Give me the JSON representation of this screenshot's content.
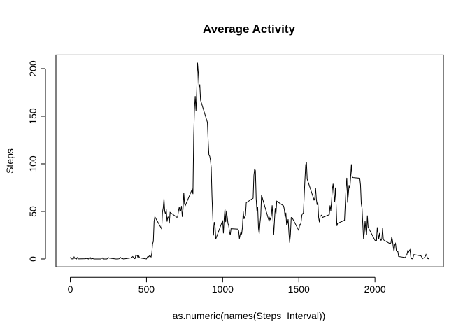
{
  "chart_data": {
    "type": "line",
    "title": "Average Activity",
    "x_label": "as.numeric(names(Steps_Interval))",
    "y_label": "Steps",
    "x": [
      0,
      5,
      10,
      15,
      20,
      25,
      30,
      35,
      40,
      45,
      50,
      55,
      100,
      105,
      110,
      115,
      120,
      125,
      130,
      135,
      140,
      145,
      150,
      155,
      200,
      210,
      215,
      220,
      230,
      240,
      250,
      255,
      300,
      310,
      320,
      330,
      335,
      340,
      350,
      400,
      410,
      420,
      425,
      430,
      440,
      445,
      450,
      455,
      500,
      505,
      510,
      515,
      520,
      525,
      530,
      535,
      540,
      545,
      550,
      555,
      600,
      605,
      610,
      615,
      620,
      625,
      630,
      635,
      640,
      645,
      650,
      655,
      700,
      705,
      710,
      715,
      720,
      725,
      730,
      735,
      740,
      745,
      750,
      755,
      800,
      805,
      810,
      815,
      820,
      825,
      830,
      835,
      840,
      845,
      850,
      855,
      900,
      905,
      910,
      915,
      920,
      925,
      930,
      935,
      940,
      945,
      950,
      955,
      1000,
      1005,
      1010,
      1015,
      1020,
      1025,
      1030,
      1035,
      1040,
      1045,
      1050,
      1055,
      1100,
      1105,
      1110,
      1115,
      1120,
      1125,
      1130,
      1135,
      1140,
      1145,
      1150,
      1155,
      1200,
      1205,
      1210,
      1215,
      1220,
      1225,
      1230,
      1235,
      1240,
      1245,
      1250,
      1255,
      1300,
      1305,
      1310,
      1315,
      1320,
      1325,
      1330,
      1335,
      1340,
      1345,
      1350,
      1355,
      1400,
      1405,
      1410,
      1415,
      1420,
      1425,
      1430,
      1435,
      1440,
      1445,
      1450,
      1455,
      1500,
      1505,
      1510,
      1515,
      1520,
      1525,
      1530,
      1535,
      1540,
      1545,
      1550,
      1555,
      1600,
      1605,
      1610,
      1615,
      1620,
      1625,
      1630,
      1635,
      1640,
      1645,
      1650,
      1655,
      1700,
      1705,
      1710,
      1715,
      1720,
      1725,
      1730,
      1735,
      1740,
      1745,
      1750,
      1755,
      1800,
      1805,
      1810,
      1815,
      1820,
      1825,
      1830,
      1835,
      1840,
      1845,
      1850,
      1855,
      1900,
      1905,
      1910,
      1915,
      1920,
      1925,
      1930,
      1935,
      1940,
      1945,
      1950,
      1955,
      2000,
      2005,
      2010,
      2015,
      2020,
      2025,
      2030,
      2035,
      2040,
      2045,
      2050,
      2055,
      2100,
      2105,
      2110,
      2115,
      2120,
      2125,
      2130,
      2135,
      2140,
      2145,
      2150,
      2155,
      2200,
      2205,
      2210,
      2215,
      2220,
      2225,
      2230,
      2235,
      2240,
      2245,
      2250,
      2255,
      2300,
      2305,
      2310,
      2315,
      2320,
      2325,
      2330,
      2335,
      2340,
      2345,
      2350,
      2355
    ],
    "values": [
      1.7,
      0.3,
      0.1,
      0.2,
      0.1,
      2.1,
      0.5,
      0.9,
      0,
      1.5,
      0.3,
      0.1,
      0.3,
      0.7,
      0.2,
      0.3,
      0,
      1.1,
      1.8,
      0.2,
      0.2,
      0.4,
      0.3,
      0,
      0,
      1.1,
      0,
      0,
      0,
      0,
      1.5,
      0.9,
      0,
      0,
      0.2,
      1.6,
      0.6,
      0.5,
      0,
      1.2,
      2.6,
      0.3,
      0.4,
      4.1,
      3.5,
      0.8,
      3.1,
      1.1,
      0,
      1.6,
      3,
      2.2,
      3.3,
      3,
      2.1,
      6,
      16,
      18.3,
      39.5,
      44.5,
      31.5,
      49.3,
      53.8,
      63.5,
      50,
      47.1,
      52.2,
      39.3,
      44,
      44.2,
      37.4,
      49,
      43.8,
      44.4,
      50.5,
      54.5,
      49.9,
      51,
      55.7,
      44.3,
      52.3,
      69.5,
      57.8,
      56.2,
      73.4,
      68.2,
      129.4,
      157.5,
      171.2,
      155.4,
      177.3,
      206.2,
      195.9,
      179.6,
      183.4,
      167,
      143.5,
      124,
      109.1,
      108.1,
      103.7,
      96,
      66.2,
      45.2,
      24.8,
      38.8,
      35,
      21.1,
      40.6,
      27,
      42.4,
      52.7,
      38.9,
      50.8,
      44.3,
      37.4,
      34.7,
      28.3,
      25.1,
      31.9,
      31.4,
      29.7,
      21.3,
      25.5,
      28.4,
      26.5,
      33.4,
      50,
      42,
      44.6,
      46,
      59.2,
      63.9,
      87.7,
      94.8,
      92.8,
      63.4,
      50.2,
      54.5,
      32.4,
      26.5,
      37.7,
      45.1,
      67.3,
      42.3,
      39.9,
      43.3,
      41,
      46.2,
      56.4,
      42.8,
      25.1,
      40,
      53.5,
      47.3,
      60.8,
      55.8,
      52,
      43.6,
      48.7,
      35.5,
      37.5,
      41.8,
      27.5,
      17.1,
      26.1,
      43.6,
      43.8,
      30,
      36.1,
      35.5,
      38.8,
      46,
      47.8,
      48.1,
      65.3,
      82.9,
      98.7,
      102.1,
      84,
      62.1,
      64.1,
      74.5,
      63.2,
      56.9,
      59.8,
      43.9,
      38.6,
      44.7,
      45.5,
      46.2,
      43.7,
      46.6,
      56.3,
      50.7,
      61.2,
      73.4,
      79.1,
      68.9,
      59.7,
      75.1,
      56.5,
      34.8,
      37.5,
      40.7,
      58,
      74.7,
      85.3,
      59.3,
      67.8,
      77.7,
      74.2,
      85.6,
      99.5,
      86.6,
      85.6,
      84.9,
      77.8,
      58,
      53.4,
      36.3,
      20.7,
      27.4,
      40,
      30.2,
      25.5,
      45.7,
      33.5,
      19.6,
      19,
      19.3,
      33.3,
      26.8,
      21.2,
      27.3,
      21.3,
      19.5,
      21.3,
      32.3,
      20.2,
      15.9,
      17.2,
      23.5,
      19.2,
      12.5,
      8,
      14.7,
      16.3,
      8.7,
      7.8,
      8.1,
      2.6,
      1.5,
      3.7,
      4.8,
      8.5,
      7.1,
      8.7,
      9.8,
      2.2,
      0.3,
      0.1,
      1.6,
      4.6,
      3.3,
      2.8,
      0,
      0.8,
      1,
      1.6,
      2.6,
      4.7,
      3.3,
      0.6,
      0.2,
      1.1
    ],
    "color": "#000000",
    "xlim": [
      -94.2,
      2449.2
    ],
    "xticks": [
      0,
      500,
      1000,
      1500,
      2000
    ],
    "ylim": [
      -8.25,
      214.4
    ],
    "yticks": [
      0,
      50,
      100,
      150,
      200
    ]
  }
}
